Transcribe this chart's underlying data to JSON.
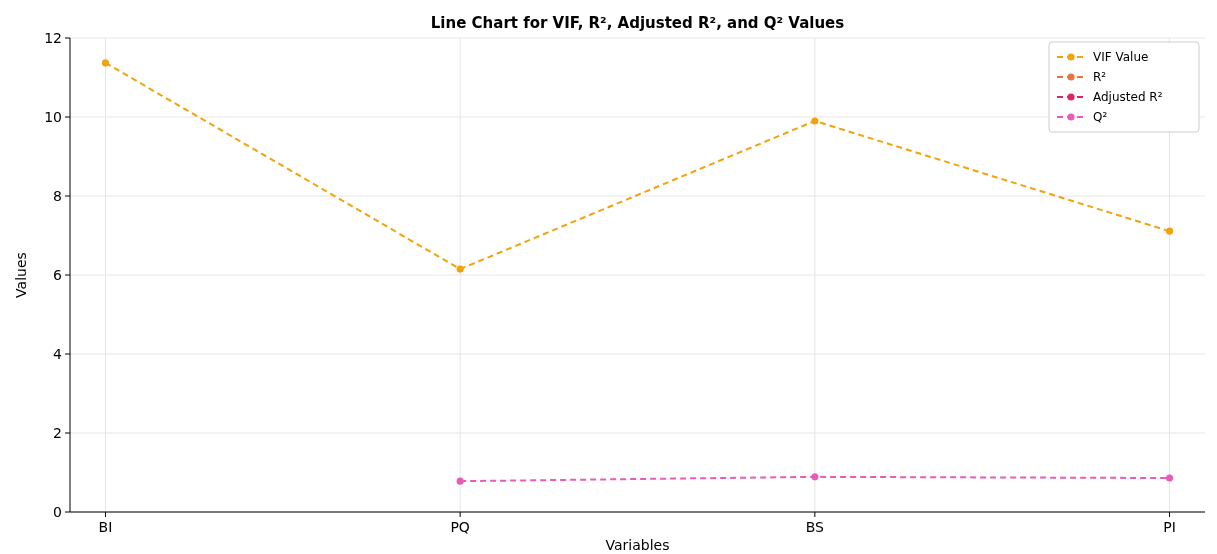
{
  "chart_data": {
    "type": "line",
    "title": "Line Chart for VIF, R², Adjusted R², and Q² Values",
    "xlabel": "Variables",
    "ylabel": "Values",
    "categories": [
      "BI",
      "PQ",
      "BS",
      "PI"
    ],
    "series": [
      {
        "name": "VIF Value",
        "color": "#f0a30a",
        "values": [
          11.37,
          6.15,
          9.9,
          7.11
        ]
      },
      {
        "name": "R²",
        "color": "#e8743b",
        "values": [
          null,
          null,
          null,
          null
        ]
      },
      {
        "name": "Adjusted R²",
        "color": "#e0245e",
        "values": [
          null,
          null,
          null,
          null
        ]
      },
      {
        "name": "Q²",
        "color": "#e85cb8",
        "values": [
          null,
          0.78,
          0.89,
          0.86
        ]
      }
    ],
    "ylim": [
      0,
      12
    ],
    "yticks": [
      0,
      2,
      4,
      6,
      8,
      10,
      12
    ],
    "grid": true,
    "legend": "top right",
    "marker": "circle",
    "line_style": "dashed"
  }
}
